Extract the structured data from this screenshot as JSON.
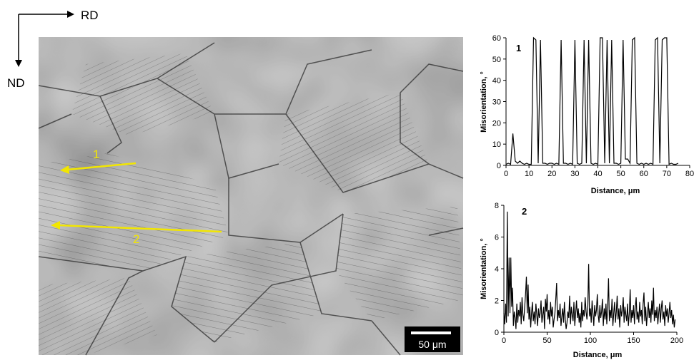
{
  "micrograph": {
    "direction_x": "RD",
    "direction_y": "ND",
    "arrow_labels": [
      "1",
      "2"
    ],
    "scale_bar": "50 μm",
    "arrow_color": "#f2e600"
  },
  "chart_data": [
    {
      "type": "line",
      "panel_label": "1",
      "xlabel": "Distance, μm",
      "ylabel": "Misorientation, °",
      "xlim": [
        0,
        80
      ],
      "ylim": [
        0,
        60
      ],
      "xticks": [
        0,
        10,
        20,
        30,
        40,
        50,
        60,
        70,
        80
      ],
      "yticks": [
        0,
        10,
        20,
        30,
        40,
        50,
        60
      ],
      "grid": false,
      "line_color": "#000000",
      "x": [
        0,
        1,
        2,
        3,
        4,
        5,
        6,
        7,
        8,
        9,
        10,
        11,
        12,
        13,
        14,
        15,
        16,
        17,
        18,
        19,
        20,
        21,
        22,
        23,
        24,
        25,
        26,
        27,
        28,
        29,
        30,
        31,
        32,
        33,
        34,
        35,
        36,
        37,
        38,
        39,
        40,
        41,
        42,
        43,
        44,
        45,
        46,
        47,
        48,
        49,
        50,
        51,
        52,
        53,
        54,
        55,
        56,
        57,
        58,
        59,
        60,
        61,
        62,
        63,
        64,
        65,
        66,
        67,
        68,
        69,
        70,
        71,
        72,
        73,
        74,
        75
      ],
      "y": [
        0.5,
        1,
        0.5,
        15,
        2,
        1,
        2,
        1,
        0.5,
        1,
        0.5,
        0.5,
        60,
        59,
        1,
        59,
        1,
        1,
        0.5,
        1,
        1,
        0.5,
        1,
        0.5,
        59,
        1,
        1,
        0.5,
        1,
        0.5,
        59,
        1,
        0.5,
        1,
        59,
        1,
        59,
        1,
        0.5,
        1,
        0.5,
        60,
        60,
        1,
        59,
        1,
        59,
        1,
        1,
        0.5,
        1,
        59,
        3,
        3,
        1,
        59,
        60,
        1,
        0.5,
        1,
        0.5,
        1,
        0.5,
        1,
        0.5,
        59,
        60,
        1,
        59,
        60,
        60,
        0.5,
        1,
        0.5,
        0.5,
        1
      ]
    },
    {
      "type": "line",
      "panel_label": "2",
      "xlabel": "Distance, μm",
      "ylabel": "Misorientation, °",
      "xlim": [
        0,
        200
      ],
      "ylim": [
        0,
        8
      ],
      "xticks": [
        0,
        50,
        100,
        150,
        200
      ],
      "yticks": [
        0,
        2,
        4,
        6,
        8
      ],
      "grid": false,
      "line_color": "#000000",
      "x_step": 1,
      "y": [
        1.2,
        0.5,
        1.8,
        0.6,
        7.6,
        1.0,
        4.7,
        1.2,
        4.7,
        1.6,
        2.8,
        0.4,
        1.3,
        0.9,
        0.2,
        1.8,
        0.6,
        1.4,
        1.0,
        1.9,
        0.5,
        2.2,
        1.1,
        0.7,
        1.5,
        2.4,
        3.5,
        1.2,
        3.0,
        0.8,
        1.6,
        0.3,
        1.2,
        1.9,
        0.7,
        1.3,
        0.5,
        1.8,
        1.1,
        0.4,
        1.5,
        0.9,
        1.2,
        2.0,
        0.6,
        1.1,
        1.6,
        0.2,
        2.1,
        1.3,
        2.4,
        0.8,
        1.4,
        0.5,
        1.9,
        1.0,
        1.6,
        0.3,
        0.8,
        1.2,
        2.1,
        3.1,
        0.7,
        1.4,
        0.9,
        1.8,
        0.4,
        1.0,
        1.5,
        0.6,
        1.9,
        0.8,
        0.2,
        0.6,
        1.3,
        0.9,
        2.3,
        0.5,
        1.6,
        1.1,
        0.7,
        1.9,
        0.4,
        1.2,
        2.0,
        0.9,
        1.5,
        0.6,
        1.2,
        0.3,
        1.9,
        0.7,
        1.4,
        1.0,
        2.2,
        1.3,
        0.8,
        1.6,
        4.3,
        1.0,
        1.5,
        0.6,
        2.0,
        1.2,
        0.4,
        1.7,
        1.0,
        1.4,
        2.4,
        1.1,
        0.6,
        1.7,
        0.9,
        1.3,
        2.1,
        0.4,
        1.5,
        0.8,
        1.8,
        0.5,
        1.6,
        3.4,
        0.7,
        1.4,
        0.9,
        2.1,
        0.4,
        1.2,
        1.9,
        0.6,
        1.3,
        2.3,
        0.8,
        1.5,
        0.3,
        1.7,
        1.0,
        1.4,
        2.2,
        0.6,
        1.6,
        1.1,
        0.7,
        1.8,
        0.4,
        1.2,
        2.7,
        0.6,
        1.4,
        0.9,
        1.7,
        0.5,
        1.6,
        2.2,
        0.8,
        1.3,
        0.6,
        1.9,
        1.0,
        1.4,
        0.5,
        1.8,
        2.5,
        0.7,
        1.6,
        0.4,
        1.2,
        1.9,
        0.9,
        1.5,
        0.6,
        2.0,
        1.1,
        2.8,
        0.7,
        1.4,
        0.9,
        1.6,
        0.5,
        1.2,
        1.8,
        0.6,
        1.5,
        2.0,
        0.8,
        1.3,
        0.4,
        1.7,
        1.0,
        1.5,
        0.6,
        1.2,
        1.9,
        0.9,
        1.4,
        0.5,
        1.1,
        0.3,
        0.8
      ]
    }
  ]
}
